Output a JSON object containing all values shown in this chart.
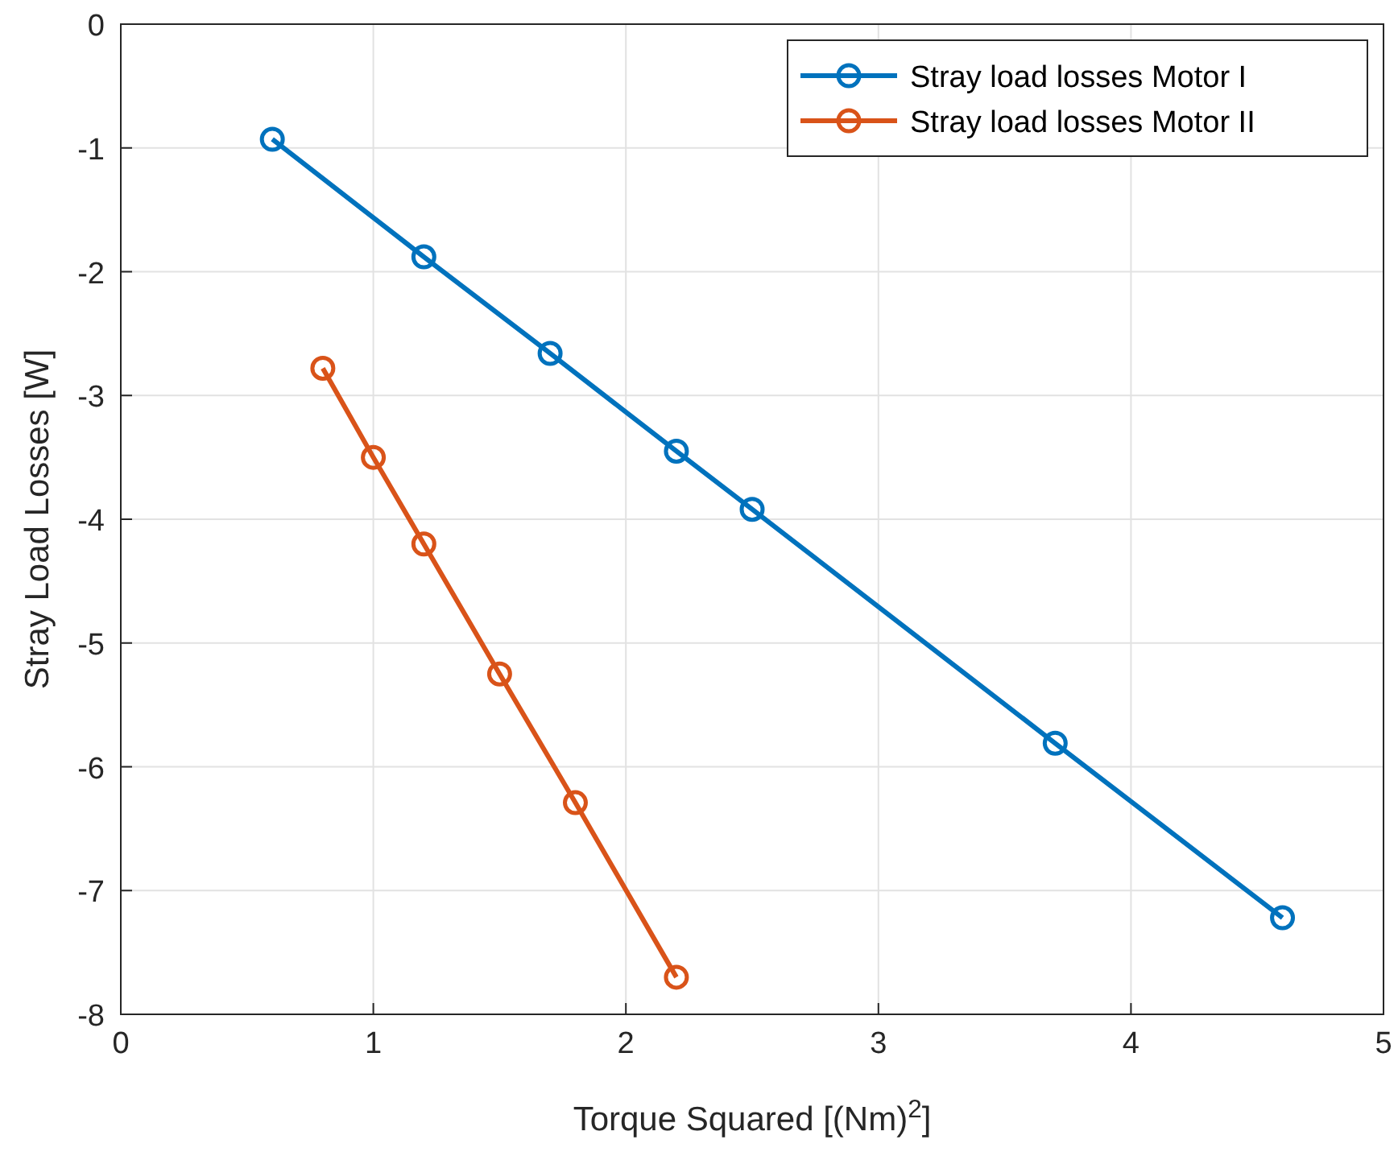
{
  "chart_data": {
    "type": "line",
    "xlabel": "Torque Squared [(Nm)$^{2}$]",
    "ylabel": "Stray Load Losses [W]",
    "xlim": [
      0,
      5
    ],
    "xticks": [
      0,
      1,
      2,
      3,
      4,
      5
    ],
    "ylim": [
      -8,
      0
    ],
    "yticks": [
      -8,
      -7,
      -6,
      -5,
      -4,
      -3,
      -2,
      -1,
      0
    ],
    "grid": true,
    "legend": "top right",
    "marker": "circle",
    "line_style": "solid",
    "series": [
      {
        "name": "Stray load losses Motor I",
        "color": "#0072bd",
        "x": [
          0.6,
          1.2,
          1.7,
          2.2,
          2.5,
          3.7,
          4.6
        ],
        "values": [
          -0.93,
          -1.88,
          -2.66,
          -3.45,
          -3.92,
          -5.81,
          -7.22
        ]
      },
      {
        "name": "Stray load losses Motor II",
        "color": "#d95319",
        "x": [
          0.8,
          1.0,
          1.2,
          1.5,
          1.8,
          2.2
        ],
        "values": [
          -2.78,
          -3.5,
          -4.2,
          -5.25,
          -6.29,
          -7.7
        ]
      }
    ]
  }
}
